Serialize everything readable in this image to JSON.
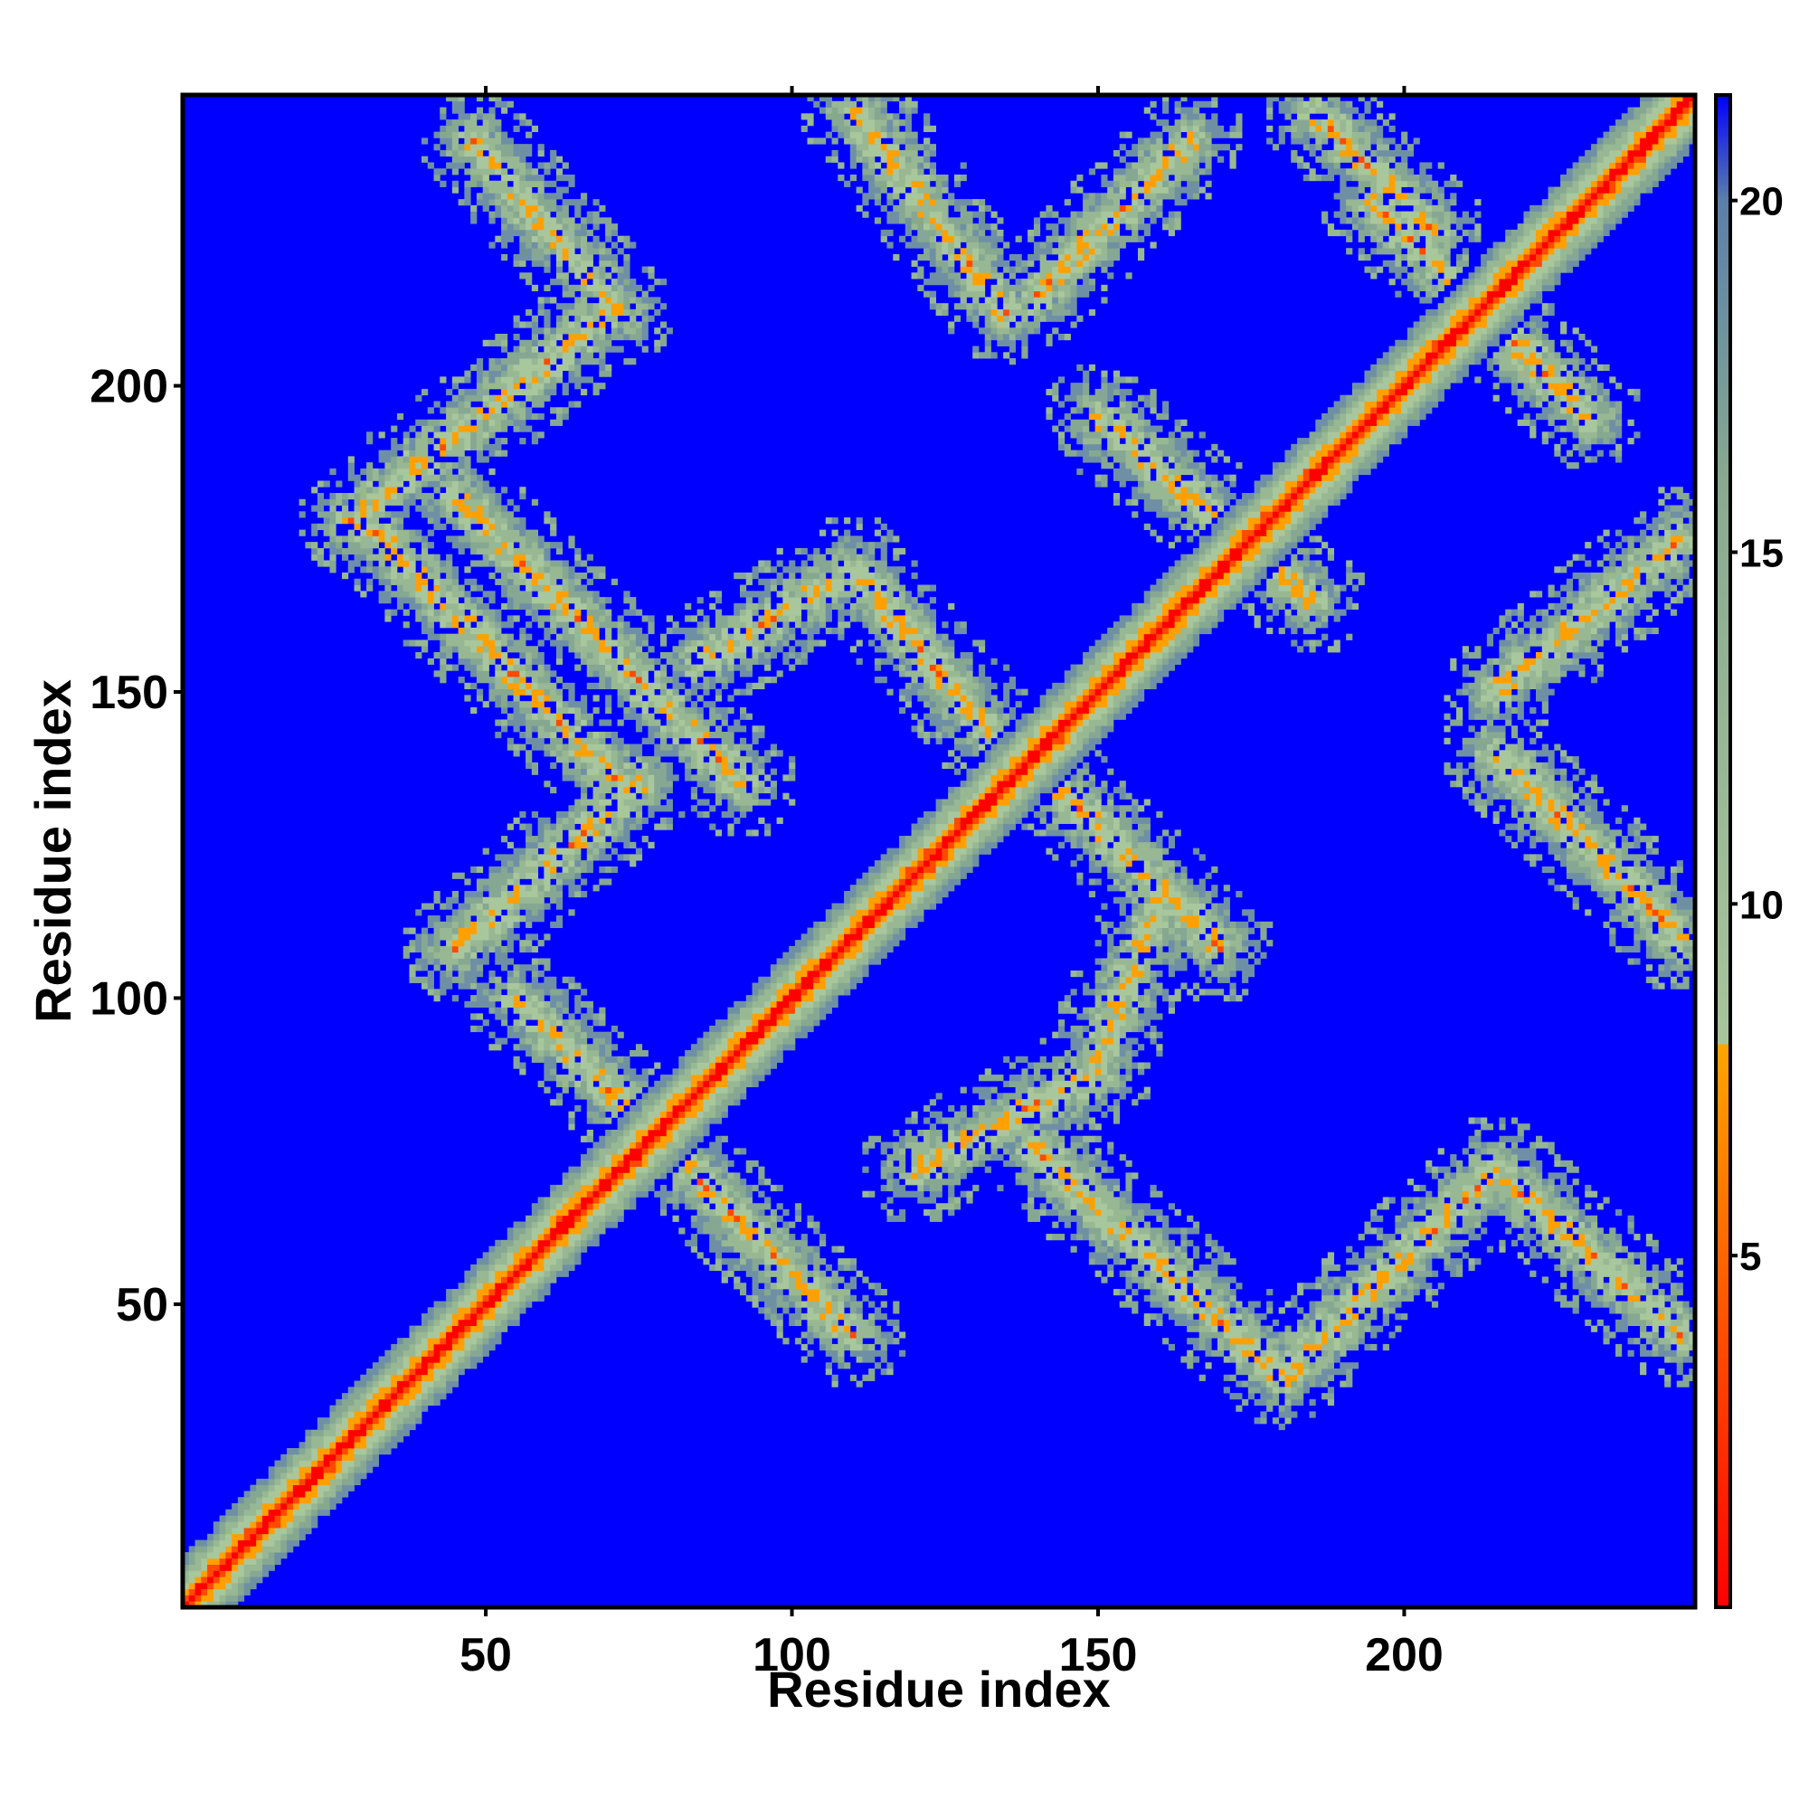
{
  "chart_data": {
    "type": "heatmap",
    "title": "",
    "xlabel": "Residue index",
    "ylabel": "Residue index",
    "xlim": [
      1,
      247
    ],
    "ylim": [
      1,
      247
    ],
    "x_ticks": [
      50,
      100,
      150,
      200
    ],
    "y_ticks": [
      50,
      100,
      150,
      200
    ],
    "x_tick_labels": [
      "50",
      "100",
      "150",
      "200"
    ],
    "y_tick_labels": [
      "50",
      "100",
      "150",
      "200"
    ],
    "n_residues": 247,
    "value_description": "pairwise residue distance, values above 20 saturate to the maximum colour",
    "colorbar": {
      "range": [
        0,
        21.5
      ],
      "ticks": [
        5,
        10,
        15,
        20
      ],
      "tick_labels": [
        "5",
        "10",
        "15",
        "20"
      ],
      "stops": [
        {
          "value": 0,
          "color": "#ff0000"
        },
        {
          "value": 4,
          "color": "#ff5000"
        },
        {
          "value": 8,
          "color": "#ffa500"
        },
        {
          "value": 8.01,
          "color": "#a8c59a"
        },
        {
          "value": 16,
          "color": "#88aa90"
        },
        {
          "value": 20,
          "color": "#5a7faa"
        },
        {
          "value": 21.5,
          "color": "#0000ff"
        }
      ]
    },
    "structure": {
      "diagonal": "contact band along i = j, widening near the diagonal",
      "contact_segments": [
        {
          "from": [
            48,
            240
          ],
          "to": [
            72,
            212
          ]
        },
        {
          "from": [
            70,
            212
          ],
          "to": [
            28,
            178
          ]
        },
        {
          "from": [
            30,
            178
          ],
          "to": [
            72,
            135
          ]
        },
        {
          "from": [
            45,
            182
          ],
          "to": [
            92,
            135
          ]
        },
        {
          "from": [
            85,
            155
          ],
          "to": [
            110,
            170
          ]
        },
        {
          "from": [
            110,
            170
          ],
          "to": [
            135,
            140
          ]
        },
        {
          "from": [
            110,
            245
          ],
          "to": [
            135,
            212
          ]
        },
        {
          "from": [
            75,
            135
          ],
          "to": [
            45,
            108
          ]
        },
        {
          "from": [
            55,
            100
          ],
          "to": [
            110,
            45
          ]
        },
        {
          "from": [
            120,
            72
          ],
          "to": [
            150,
            88
          ]
        },
        {
          "from": [
            150,
            90
          ],
          "to": [
            160,
            115
          ]
        },
        {
          "from": [
            138,
            140
          ],
          "to": [
            170,
            108
          ]
        },
        {
          "from": [
            140,
            75
          ],
          "to": [
            180,
            38
          ]
        },
        {
          "from": [
            180,
            38
          ],
          "to": [
            215,
            72
          ]
        },
        {
          "from": [
            215,
            72
          ],
          "to": [
            245,
            45
          ]
        },
        {
          "from": [
            215,
            140
          ],
          "to": [
            245,
            110
          ]
        },
        {
          "from": [
            215,
            150
          ],
          "to": [
            245,
            175
          ]
        },
        {
          "from": [
            150,
            195
          ],
          "to": [
            185,
            165
          ]
        },
        {
          "from": [
            195,
            230
          ],
          "to": [
            230,
            195
          ]
        },
        {
          "from": [
            165,
            240
          ],
          "to": [
            140,
            215
          ]
        },
        {
          "from": [
            185,
            245
          ],
          "to": [
            205,
            225
          ]
        }
      ]
    }
  }
}
